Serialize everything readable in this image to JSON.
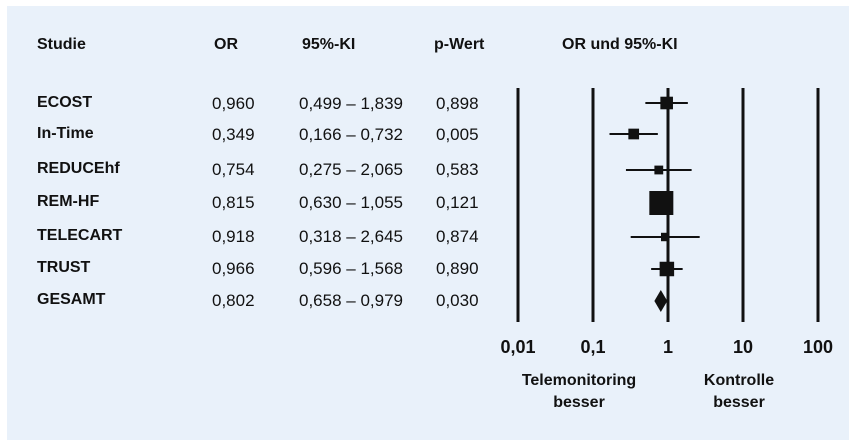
{
  "chart_data": {
    "type": "forest",
    "columns": {
      "study": "Studie",
      "or": "OR",
      "ci": "95%-KI",
      "p": "p-Wert",
      "plot": "OR und 95%-KI"
    },
    "rows": [
      {
        "study": "ECOST",
        "or_text": "0,960",
        "ci_text": "0,499 – 1,839",
        "p_text": "0,898",
        "or": 0.96,
        "lo": 0.499,
        "hi": 1.839,
        "weight": 0.4
      },
      {
        "study": "In-Time",
        "or_text": "0,349",
        "ci_text": "0,166 – 0,732",
        "p_text": "0,005",
        "or": 0.349,
        "lo": 0.166,
        "hi": 0.732,
        "weight": 0.3
      },
      {
        "study": "REDUCEhf",
        "or_text": "0,754",
        "ci_text": "0,275 – 2,065",
        "p_text": "0,583",
        "or": 0.754,
        "lo": 0.275,
        "hi": 2.065,
        "weight": 0.2
      },
      {
        "study": "REM-HF",
        "or_text": "0,815",
        "ci_text": "0,630 – 1,055",
        "p_text": "0,121",
        "or": 0.815,
        "lo": 0.63,
        "hi": 1.055,
        "weight": 1.0
      },
      {
        "study": "TELECART",
        "or_text": "0,918",
        "ci_text": "0,318 – 2,645",
        "p_text": "0,874",
        "or": 0.918,
        "lo": 0.318,
        "hi": 2.645,
        "weight": 0.18
      },
      {
        "study": "TRUST",
        "or_text": "0,966",
        "ci_text": "0,596 – 1,568",
        "p_text": "0,890",
        "or": 0.966,
        "lo": 0.596,
        "hi": 1.568,
        "weight": 0.5
      }
    ],
    "overall": {
      "study": "GESAMT",
      "or_text": "0,802",
      "ci_text": "0,658 – 0,979",
      "p_text": "0,030",
      "or": 0.802,
      "lo": 0.658,
      "hi": 0.979
    },
    "x_scale": "log",
    "x_ticks": [
      {
        "value": 0.01,
        "label": "0,01"
      },
      {
        "value": 0.1,
        "label": "0,1"
      },
      {
        "value": 1,
        "label": "1"
      },
      {
        "value": 10,
        "label": "10"
      },
      {
        "value": 100,
        "label": "100"
      }
    ],
    "favors_left": [
      "Telemonitoring",
      "besser"
    ],
    "favors_right": [
      "Kontrolle",
      "besser"
    ],
    "colors": {
      "background": "#e9f1fa",
      "ink": "#111111"
    }
  }
}
